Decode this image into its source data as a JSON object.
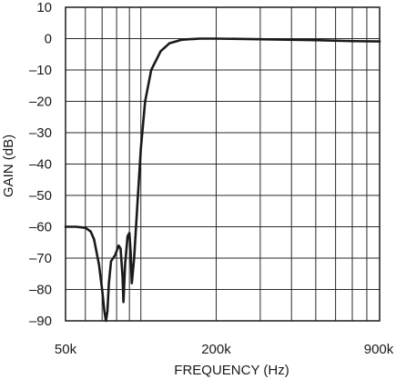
{
  "chart_data": {
    "type": "line",
    "title": "",
    "xlabel": "FREQUENCY (Hz)",
    "ylabel": "GAIN (dB)",
    "x_scale": "log",
    "xlim": [
      50000,
      900000
    ],
    "ylim": [
      -90,
      10
    ],
    "x_tick_labels": [
      {
        "value": 50000,
        "label": "50k"
      },
      {
        "value": 200000,
        "label": "200k"
      },
      {
        "value": 900000,
        "label": "900k"
      }
    ],
    "x_gridlines": [
      50000,
      60000,
      70000,
      80000,
      90000,
      100000,
      200000,
      300000,
      400000,
      500000,
      600000,
      700000,
      800000,
      900000
    ],
    "y_ticks": [
      10,
      0,
      -10,
      -20,
      -30,
      -40,
      -50,
      -60,
      -70,
      -80,
      -90
    ],
    "y_tick_labels": [
      "10",
      "0",
      "–10",
      "–20",
      "–30",
      "–40",
      "–50",
      "–60",
      "–70",
      "–80",
      "–90"
    ],
    "grid": true,
    "line_color": "#1a1a1a",
    "series": [
      {
        "name": "",
        "x": [
          50000,
          55000,
          60000,
          63000,
          65000,
          68000,
          70000,
          71500,
          72500,
          73500,
          74500,
          76000,
          79000,
          81500,
          83000,
          84500,
          85200,
          86500,
          88500,
          90000,
          91000,
          92000,
          94000,
          97000,
          100000,
          104000,
          110000,
          120000,
          130000,
          145000,
          155000,
          165000,
          172000,
          176000,
          180000,
          185000,
          190000,
          195000,
          200000,
          300000,
          500000,
          700000,
          900000
        ],
        "y": [
          -60,
          -60,
          -60.3,
          -61.5,
          -64,
          -72,
          -80,
          -87,
          -90,
          -87,
          -78,
          -71,
          -69,
          -66,
          -67,
          -76,
          -84,
          -72,
          -63,
          -62,
          -68,
          -78,
          -70,
          -52,
          -35,
          -20,
          -10,
          -4,
          -1.5,
          -0.4,
          -0.2,
          -0.1,
          0,
          0,
          0,
          0,
          0,
          0,
          0,
          -0.2,
          -0.5,
          -0.8,
          -0.9
        ]
      }
    ]
  }
}
